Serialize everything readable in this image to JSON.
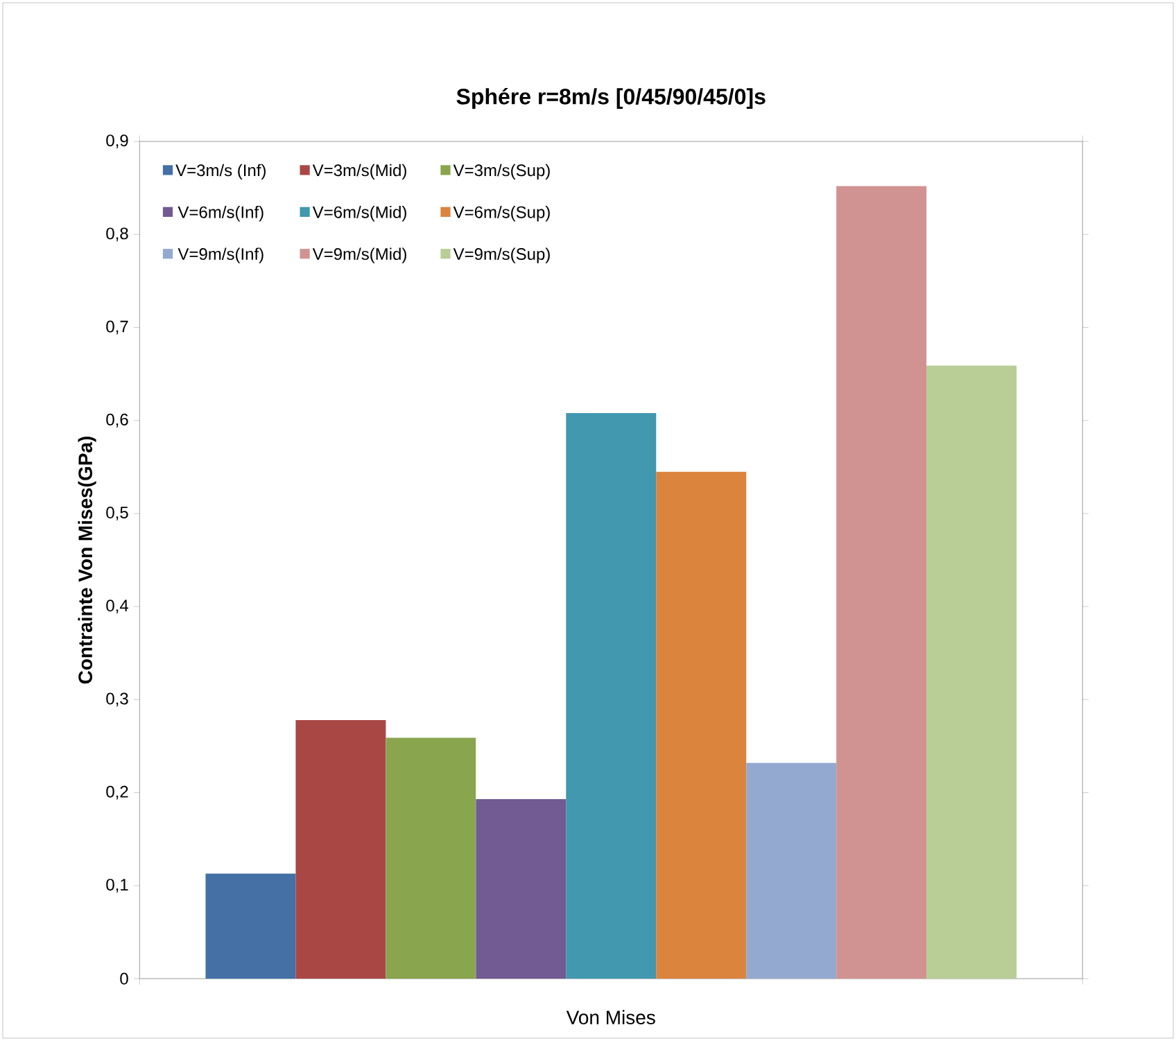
{
  "chart_data": {
    "type": "bar",
    "title": "Sphére r=8m/s  [0/45/90/45/0]s",
    "xlabel": "Von Mises",
    "ylabel": "Contrainte Von Mises(GPa)",
    "categories": [
      null
    ],
    "series": [
      {
        "name": "V=3m/s (Inf)",
        "color": "#4470a6",
        "values": [
          0.113
        ]
      },
      {
        "name": "V=3m/s(Mid)",
        "color": "#a94745",
        "values": [
          0.278
        ]
      },
      {
        "name": "V=3m/s(Sup)",
        "color": "#89a54e",
        "values": [
          0.259
        ]
      },
      {
        "name": "V=6m/s(Inf)",
        "color": "#725a92",
        "values": [
          0.193
        ]
      },
      {
        "name": "V=6m/s(Mid)",
        "color": "#4198af",
        "values": [
          0.608
        ]
      },
      {
        "name": "V=6m/s(Sup)",
        "color": "#db843d",
        "values": [
          0.545
        ]
      },
      {
        "name": "V=9m/s(Inf)",
        "color": "#94a9d0",
        "values": [
          0.232
        ]
      },
      {
        "name": "V=9m/s(Mid)",
        "color": "#d19392",
        "values": [
          0.852
        ]
      },
      {
        "name": "V=9m/s(Sup)",
        "color": "#b9cd96",
        "values": [
          0.659
        ]
      }
    ],
    "ylim": [
      0,
      0.9
    ],
    "yticks": [
      0,
      {
        "value": 0.1,
        "label": "0,1"
      },
      {
        "value": 0.2,
        "label": "0,2"
      },
      {
        "value": 0.3,
        "label": "0,3"
      },
      {
        "value": 0.4,
        "label": "0,4"
      },
      {
        "value": 0.5,
        "label": "0,5"
      },
      {
        "value": 0.6,
        "label": "0,6"
      },
      {
        "value": 0.7,
        "label": "0,7"
      },
      {
        "value": 0.8,
        "label": "0,8"
      },
      {
        "value": 0.9,
        "label": "0,9"
      }
    ],
    "legend": "top left",
    "tick_labels": "y"
  }
}
